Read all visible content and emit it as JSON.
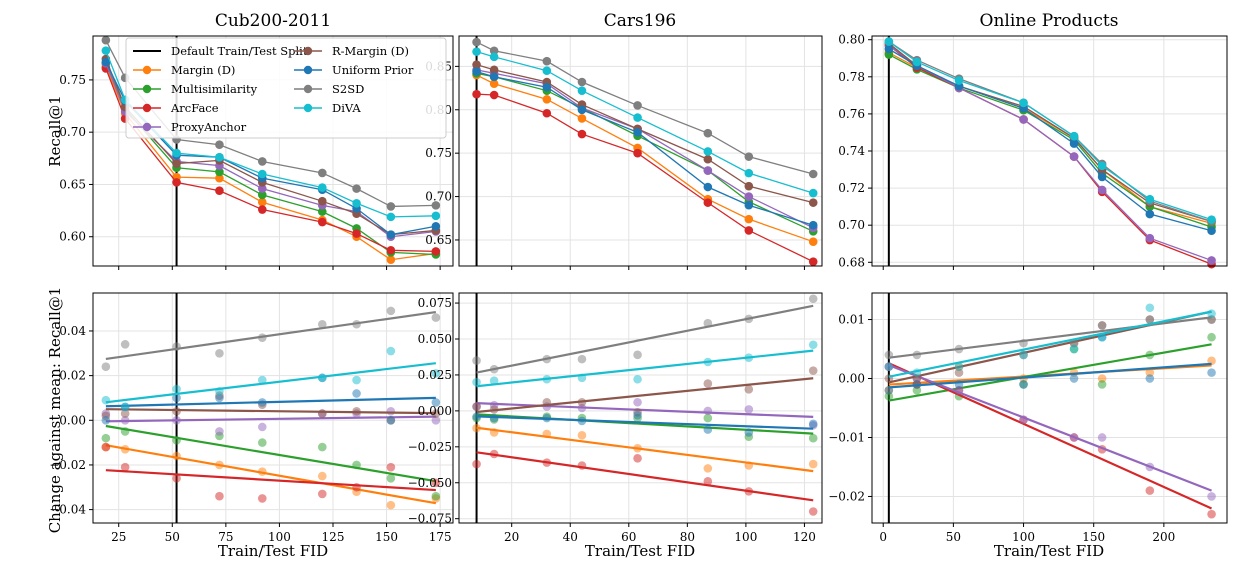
{
  "figure": {
    "ylabel_top": "Recall@1",
    "ylabel_bottom": "Change against mean: Recall@1",
    "xlabel": "Train/Test FID"
  },
  "legend": {
    "placement": "upper-left of first panel",
    "entries": [
      {
        "label": "Default Train/Test Split",
        "color": "#000000",
        "kind": "line"
      },
      {
        "label": "Margin (D)",
        "color": "#ff7f0e",
        "kind": "series"
      },
      {
        "label": "Multisimilarity",
        "color": "#2ca02c",
        "kind": "series"
      },
      {
        "label": "ArcFace",
        "color": "#d62728",
        "kind": "series"
      },
      {
        "label": "ProxyAnchor",
        "color": "#9467bd",
        "kind": "series"
      },
      {
        "label": "R-Margin (D)",
        "color": "#8c564b",
        "kind": "series"
      },
      {
        "label": "Uniform Prior",
        "color": "#1f77b4",
        "kind": "series"
      },
      {
        "label": "S2SD",
        "color": "#7f7f7f",
        "kind": "series"
      },
      {
        "label": "DiVA",
        "color": "#17becf",
        "kind": "series"
      }
    ]
  },
  "chart_data": [
    {
      "type": "line",
      "title": "Cub200-2011",
      "xlabel": "",
      "ylabel": "Recall@1",
      "xlim": [
        13,
        181
      ],
      "ylim": [
        0.572,
        0.792
      ],
      "xticks": [
        25,
        50,
        75,
        100,
        125,
        150,
        175
      ],
      "xtick_labels": [
        "25",
        "50",
        "75",
        "100",
        "125",
        "150",
        "175"
      ],
      "show_xtick_labels": false,
      "yticks": [
        0.6,
        0.65,
        0.7,
        0.75
      ],
      "ytick_labels": [
        "0.60",
        "0.65",
        "0.70",
        "0.75"
      ],
      "default_split_x": 52,
      "grid": true,
      "x": [
        19,
        28,
        52,
        72,
        92,
        120,
        136,
        152,
        173
      ],
      "series": [
        {
          "name": "Margin (D)",
          "color": "#ff7f0e",
          "values": [
            0.763,
            0.718,
            0.657,
            0.656,
            0.633,
            0.616,
            0.6,
            0.578,
            0.584
          ]
        },
        {
          "name": "Multisimilarity",
          "color": "#2ca02c",
          "values": [
            0.766,
            0.722,
            0.666,
            0.662,
            0.64,
            0.624,
            0.608,
            0.585,
            0.583
          ]
        },
        {
          "name": "ArcFace",
          "color": "#d62728",
          "values": [
            0.761,
            0.713,
            0.652,
            0.644,
            0.626,
            0.614,
            0.603,
            0.587,
            0.586
          ]
        },
        {
          "name": "ProxyAnchor",
          "color": "#9467bd",
          "values": [
            0.766,
            0.72,
            0.672,
            0.668,
            0.646,
            0.63,
            0.624,
            0.6,
            0.605
          ]
        },
        {
          "name": "R-Margin (D)",
          "color": "#8c564b",
          "values": [
            0.77,
            0.724,
            0.67,
            0.673,
            0.652,
            0.634,
            0.622,
            0.602,
            0.606
          ]
        },
        {
          "name": "Uniform Prior",
          "color": "#1f77b4",
          "values": [
            0.767,
            0.73,
            0.678,
            0.676,
            0.656,
            0.645,
            0.627,
            0.602,
            0.61
          ]
        },
        {
          "name": "S2SD",
          "color": "#7f7f7f",
          "values": [
            0.788,
            0.752,
            0.693,
            0.688,
            0.672,
            0.661,
            0.646,
            0.629,
            0.63
          ]
        },
        {
          "name": "DiVA",
          "color": "#17becf",
          "values": [
            0.778,
            0.731,
            0.68,
            0.676,
            0.66,
            0.647,
            0.632,
            0.619,
            0.62
          ]
        }
      ]
    },
    {
      "type": "line",
      "title": "Cars196",
      "xlabel": "",
      "ylabel": "",
      "xlim": [
        2,
        126
      ],
      "ylim": [
        0.62,
        0.885
      ],
      "xticks": [
        20,
        40,
        60,
        80,
        100,
        120
      ],
      "xtick_labels": [
        "20",
        "40",
        "60",
        "80",
        "100",
        "120"
      ],
      "show_xtick_labels": false,
      "yticks": [
        0.65,
        0.7,
        0.75,
        0.8,
        0.85
      ],
      "ytick_labels": [
        "0.65",
        "0.70",
        "0.75",
        "0.80",
        "0.85"
      ],
      "default_split_x": 8,
      "grid": true,
      "x": [
        8,
        14,
        32,
        44,
        63,
        87,
        101,
        123
      ],
      "series": [
        {
          "name": "Margin (D)",
          "color": "#ff7f0e",
          "values": [
            0.84,
            0.83,
            0.812,
            0.79,
            0.756,
            0.697,
            0.674,
            0.648
          ]
        },
        {
          "name": "Multisimilarity",
          "color": "#2ca02c",
          "values": [
            0.842,
            0.838,
            0.822,
            0.802,
            0.77,
            0.73,
            0.694,
            0.66
          ]
        },
        {
          "name": "ArcFace",
          "color": "#d62728",
          "values": [
            0.818,
            0.817,
            0.796,
            0.772,
            0.75,
            0.693,
            0.661,
            0.625
          ]
        },
        {
          "name": "ProxyAnchor",
          "color": "#9467bd",
          "values": [
            0.846,
            0.842,
            0.83,
            0.802,
            0.778,
            0.73,
            0.7,
            0.664
          ]
        },
        {
          "name": "R-Margin (D)",
          "color": "#8c564b",
          "values": [
            0.852,
            0.846,
            0.832,
            0.806,
            0.778,
            0.743,
            0.712,
            0.693
          ]
        },
        {
          "name": "Uniform Prior",
          "color": "#1f77b4",
          "values": [
            0.844,
            0.838,
            0.826,
            0.8,
            0.774,
            0.711,
            0.69,
            0.667
          ]
        },
        {
          "name": "S2SD",
          "color": "#7f7f7f",
          "values": [
            0.878,
            0.868,
            0.856,
            0.832,
            0.805,
            0.773,
            0.746,
            0.726
          ]
        },
        {
          "name": "DiVA",
          "color": "#17becf",
          "values": [
            0.867,
            0.861,
            0.845,
            0.822,
            0.791,
            0.752,
            0.727,
            0.704
          ]
        }
      ]
    },
    {
      "type": "line",
      "title": "Online Products",
      "xlabel": "",
      "ylabel": "",
      "xlim": [
        -8,
        245
      ],
      "ylim": [
        0.678,
        0.802
      ],
      "xticks": [
        0,
        50,
        100,
        150,
        200
      ],
      "xtick_labels": [
        "0",
        "50",
        "100",
        "150",
        "200"
      ],
      "show_xtick_labels": false,
      "yticks": [
        0.68,
        0.7,
        0.72,
        0.74,
        0.76,
        0.78,
        0.8
      ],
      "ytick_labels": [
        "0.68",
        "0.70",
        "0.72",
        "0.74",
        "0.76",
        "0.78",
        "0.80"
      ],
      "default_split_x": 4,
      "grid": true,
      "x": [
        4,
        24,
        54,
        100,
        136,
        156,
        190,
        234
      ],
      "series": [
        {
          "name": "Margin (D)",
          "color": "#ff7f0e",
          "values": [
            0.793,
            0.785,
            0.775,
            0.763,
            0.747,
            0.73,
            0.71,
            0.701
          ]
        },
        {
          "name": "Multisimilarity",
          "color": "#2ca02c",
          "values": [
            0.792,
            0.784,
            0.774,
            0.762,
            0.746,
            0.728,
            0.71,
            0.699
          ]
        },
        {
          "name": "ArcFace",
          "color": "#d62728",
          "values": [
            0.797,
            0.785,
            0.774,
            0.757,
            0.737,
            0.718,
            0.692,
            0.679
          ]
        },
        {
          "name": "ProxyAnchor",
          "color": "#9467bd",
          "values": [
            0.797,
            0.786,
            0.774,
            0.757,
            0.737,
            0.719,
            0.693,
            0.681
          ]
        },
        {
          "name": "R-Margin (D)",
          "color": "#8c564b",
          "values": [
            0.798,
            0.786,
            0.775,
            0.764,
            0.747,
            0.73,
            0.712,
            0.702
          ]
        },
        {
          "name": "Uniform Prior",
          "color": "#1f77b4",
          "values": [
            0.795,
            0.786,
            0.775,
            0.763,
            0.744,
            0.726,
            0.706,
            0.697
          ]
        },
        {
          "name": "S2SD",
          "color": "#7f7f7f",
          "values": [
            0.799,
            0.789,
            0.779,
            0.766,
            0.748,
            0.733,
            0.713,
            0.702
          ]
        },
        {
          "name": "DiVA",
          "color": "#17becf",
          "values": [
            0.799,
            0.788,
            0.778,
            0.766,
            0.748,
            0.732,
            0.714,
            0.703
          ]
        }
      ]
    },
    {
      "type": "scatter",
      "title": "",
      "xlabel": "Train/Test FID",
      "ylabel": "Change against mean: Recall@1",
      "xlim": [
        13,
        181
      ],
      "ylim": [
        -0.046,
        0.057
      ],
      "xticks": [
        25,
        50,
        75,
        100,
        125,
        150,
        175
      ],
      "xtick_labels": [
        "25",
        "50",
        "75",
        "100",
        "125",
        "150",
        "175"
      ],
      "show_xtick_labels": true,
      "yticks": [
        -0.04,
        -0.02,
        0.0,
        0.02,
        0.04
      ],
      "ytick_labels": [
        "−0.04",
        "−0.02",
        "0.00",
        "0.02",
        "0.04"
      ],
      "default_split_x": 52,
      "grid": true,
      "fit_lines": true,
      "x": [
        19,
        28,
        52,
        72,
        92,
        120,
        136,
        152,
        173
      ],
      "series": [
        {
          "name": "Margin (D)",
          "color": "#ff7f0e",
          "values": [
            -0.012,
            -0.013,
            -0.016,
            -0.02,
            -0.023,
            -0.025,
            -0.032,
            -0.038,
            -0.035
          ]
        },
        {
          "name": "Multisimilarity",
          "color": "#2ca02c",
          "values": [
            -0.008,
            -0.005,
            -0.009,
            -0.007,
            -0.01,
            -0.012,
            -0.02,
            -0.026,
            -0.034
          ]
        },
        {
          "name": "ArcFace",
          "color": "#d62728",
          "values": [
            -0.012,
            -0.021,
            -0.026,
            -0.034,
            -0.035,
            -0.033,
            -0.03,
            -0.021,
            -0.028
          ]
        },
        {
          "name": "ProxyAnchor",
          "color": "#9467bd",
          "values": [
            0.003,
            0.0,
            0.0,
            -0.005,
            -0.003,
            0.003,
            0.003,
            0.004,
            0.0
          ]
        },
        {
          "name": "R-Margin (D)",
          "color": "#8c564b",
          "values": [
            0.002,
            0.003,
            0.004,
            0.011,
            0.007,
            0.003,
            0.004,
            0.0,
            0.003
          ]
        },
        {
          "name": "Uniform Prior",
          "color": "#1f77b4",
          "values": [
            0.0,
            0.006,
            0.01,
            0.01,
            0.008,
            0.019,
            0.012,
            0.0,
            0.008
          ]
        },
        {
          "name": "S2SD",
          "color": "#7f7f7f",
          "values": [
            0.024,
            0.034,
            0.033,
            0.03,
            0.037,
            0.043,
            0.043,
            0.049,
            0.046
          ]
        },
        {
          "name": "DiVA",
          "color": "#17becf",
          "values": [
            0.009,
            0.006,
            0.014,
            0.013,
            0.018,
            0.019,
            0.018,
            0.031,
            0.021
          ]
        }
      ]
    },
    {
      "type": "scatter",
      "title": "",
      "xlabel": "Train/Test FID",
      "ylabel": "",
      "xlim": [
        2,
        126
      ],
      "ylim": [
        -0.078,
        0.082
      ],
      "xticks": [
        20,
        40,
        60,
        80,
        100,
        120
      ],
      "xtick_labels": [
        "20",
        "40",
        "60",
        "80",
        "100",
        "120"
      ],
      "show_xtick_labels": true,
      "yticks": [
        -0.075,
        -0.05,
        -0.025,
        0.0,
        0.025,
        0.05,
        0.075
      ],
      "ytick_labels": [
        "−0.075",
        "−0.050",
        "−0.025",
        "0.000",
        "0.025",
        "0.050",
        "0.075"
      ],
      "default_split_x": 8,
      "grid": true,
      "fit_lines": true,
      "x": [
        8,
        14,
        32,
        44,
        63,
        87,
        101,
        123
      ],
      "series": [
        {
          "name": "Margin (D)",
          "color": "#ff7f0e",
          "values": [
            -0.012,
            -0.015,
            -0.016,
            -0.017,
            -0.026,
            -0.04,
            -0.038,
            -0.037
          ]
        },
        {
          "name": "Multisimilarity",
          "color": "#2ca02c",
          "values": [
            -0.005,
            -0.006,
            -0.004,
            -0.005,
            -0.005,
            -0.005,
            -0.018,
            -0.019
          ]
        },
        {
          "name": "ArcFace",
          "color": "#d62728",
          "values": [
            -0.037,
            -0.03,
            -0.036,
            -0.038,
            -0.033,
            -0.049,
            -0.056,
            -0.07
          ]
        },
        {
          "name": "ProxyAnchor",
          "color": "#9467bd",
          "values": [
            0.003,
            0.004,
            0.003,
            0.002,
            0.006,
            0.0,
            0.001,
            -0.01
          ]
        },
        {
          "name": "R-Margin (D)",
          "color": "#8c564b",
          "values": [
            0.003,
            0.001,
            0.006,
            0.006,
            -0.001,
            0.019,
            0.015,
            0.028
          ]
        },
        {
          "name": "Uniform Prior",
          "color": "#1f77b4",
          "values": [
            -0.004,
            -0.005,
            -0.005,
            -0.007,
            -0.003,
            -0.013,
            -0.015,
            -0.009
          ]
        },
        {
          "name": "S2SD",
          "color": "#7f7f7f",
          "values": [
            0.035,
            0.029,
            0.036,
            0.036,
            0.039,
            0.061,
            0.064,
            0.078
          ]
        },
        {
          "name": "DiVA",
          "color": "#17becf",
          "values": [
            0.02,
            0.021,
            0.022,
            0.023,
            0.022,
            0.034,
            0.037,
            0.046
          ]
        }
      ]
    },
    {
      "type": "scatter",
      "title": "",
      "xlabel": "Train/Test FID",
      "ylabel": "",
      "xlim": [
        -8,
        245
      ],
      "ylim": [
        -0.0245,
        0.0145
      ],
      "xticks": [
        0,
        50,
        100,
        150,
        200
      ],
      "xtick_labels": [
        "0",
        "50",
        "100",
        "150",
        "200"
      ],
      "show_xtick_labels": true,
      "yticks": [
        -0.02,
        -0.01,
        0.0,
        0.01
      ],
      "ytick_labels": [
        "−0.02",
        "−0.01",
        "0.00",
        "0.01"
      ],
      "default_split_x": 4,
      "grid": true,
      "fit_lines": true,
      "x": [
        4,
        24,
        54,
        100,
        136,
        156,
        190,
        234
      ],
      "series": [
        {
          "name": "Margin (D)",
          "color": "#ff7f0e",
          "values": [
            -0.002,
            -0.001,
            0.002,
            0.0,
            0.001,
            -0.0,
            0.001,
            0.003
          ]
        },
        {
          "name": "Multisimilarity",
          "color": "#2ca02c",
          "values": [
            -0.003,
            -0.002,
            -0.003,
            -0.001,
            0.005,
            -0.001,
            0.004,
            0.007
          ]
        },
        {
          "name": "ArcFace",
          "color": "#d62728",
          "values": [
            0.002,
            -0.001,
            -0.002,
            -0.007,
            -0.01,
            -0.012,
            -0.019,
            -0.023
          ]
        },
        {
          "name": "ProxyAnchor",
          "color": "#9467bd",
          "values": [
            0.002,
            0.0,
            -0.002,
            -0.007,
            -0.01,
            -0.01,
            -0.015,
            -0.02
          ]
        },
        {
          "name": "R-Margin (D)",
          "color": "#8c564b",
          "values": [
            0.0,
            0.0,
            0.001,
            0.004,
            0.006,
            0.009,
            0.01,
            0.01
          ]
        },
        {
          "name": "Uniform Prior",
          "color": "#1f77b4",
          "values": [
            -0.002,
            -0.001,
            -0.001,
            -0.001,
            0.0,
            0.007,
            0.0,
            0.001
          ]
        },
        {
          "name": "S2SD",
          "color": "#7f7f7f",
          "values": [
            0.004,
            0.004,
            0.005,
            0.006,
            0.006,
            0.009,
            0.01,
            0.01
          ]
        },
        {
          "name": "DiVA",
          "color": "#17becf",
          "values": [
            0.002,
            0.001,
            0.002,
            0.004,
            0.005,
            0.007,
            0.012,
            0.011
          ]
        }
      ]
    }
  ]
}
